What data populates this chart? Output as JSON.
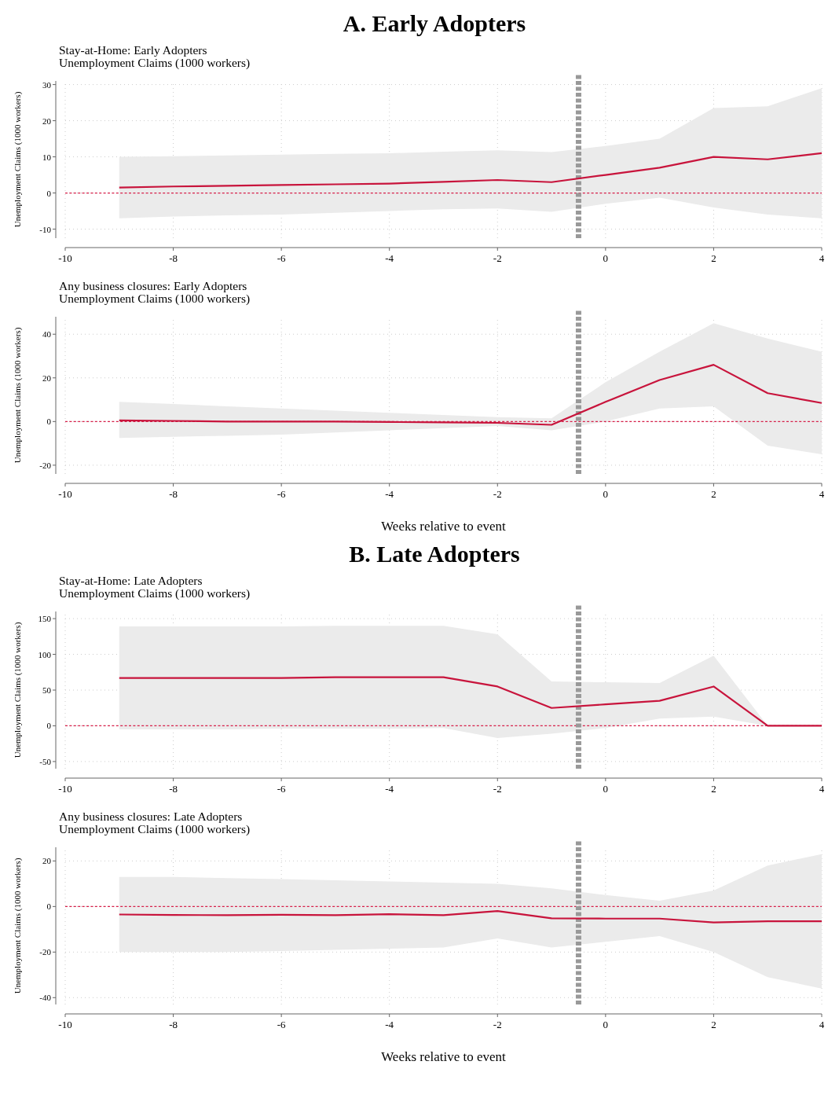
{
  "chart_data": [
    {
      "type": "line",
      "title": "A.  Early Adopters",
      "subtitle": "Stay-at-Home: Early Adopters\nUnemployment Claims (1000 workers)",
      "ylabel": "Unemployment Claims (1000 workers)",
      "x": [
        -9,
        -8,
        -7,
        -6,
        -5,
        -4,
        -3,
        -2,
        -1,
        0,
        1,
        2,
        3,
        4
      ],
      "series": [
        {
          "color": "#c8143c",
          "values": [
            1.5,
            1.8,
            2,
            2.2,
            2.4,
            2.6,
            3.1,
            3.6,
            3,
            5,
            7,
            10,
            9.3,
            11
          ],
          "lower": [
            -7,
            -6.5,
            -6.2,
            -6,
            -5.5,
            -5,
            -4.5,
            -4.3,
            -5.2,
            -3,
            -1.3,
            -4,
            -6,
            -7
          ],
          "upper": [
            10,
            10.2,
            10.4,
            10.6,
            10.8,
            11,
            11.4,
            11.8,
            11.3,
            13,
            15,
            23.5,
            24,
            29
          ]
        }
      ],
      "xlim": [
        -10,
        4
      ],
      "xticks": [
        -10,
        -8,
        -6,
        -4,
        -2,
        0,
        2,
        4
      ],
      "ylim": [
        -12.5,
        31
      ],
      "yticks": [
        -10,
        0,
        10,
        20,
        30
      ],
      "grid": true,
      "marker": "none",
      "ref_lines": [
        {
          "axis": "y",
          "value": 0,
          "color": "#d6204a",
          "line_style": "dashed"
        },
        {
          "axis": "x",
          "value": -0.5,
          "color": "#999999",
          "line_style": "dashed"
        }
      ]
    },
    {
      "type": "line",
      "subtitle": "Any business closures: Early Adopters\nUnemployment Claims (1000 workers)",
      "ylabel": "Unemployment Claims (1000 workers)",
      "xlabel": "Weeks relative to event",
      "x": [
        -9,
        -8,
        -7,
        -6,
        -5,
        -4,
        -3,
        -2,
        -1,
        0,
        1,
        2,
        3,
        4
      ],
      "series": [
        {
          "color": "#c8143c",
          "values": [
            0.5,
            0.3,
            0,
            0,
            0,
            -0.2,
            -0.4,
            -0.6,
            -1.5,
            9,
            19,
            26,
            13,
            8.5
          ],
          "lower": [
            -7.5,
            -7,
            -6.5,
            -6,
            -5,
            -4,
            -3,
            -2,
            -4,
            0,
            6,
            7,
            -11,
            -15
          ],
          "upper": [
            9,
            8,
            7,
            6,
            5,
            4,
            3,
            2,
            1.5,
            18,
            32,
            45,
            38,
            32
          ]
        }
      ],
      "xlim": [
        -10,
        4
      ],
      "xticks": [
        -10,
        -8,
        -6,
        -4,
        -2,
        0,
        2,
        4
      ],
      "ylim": [
        -24,
        48
      ],
      "yticks": [
        -20,
        0,
        20,
        40
      ],
      "grid": true,
      "marker": "none",
      "ref_lines": [
        {
          "axis": "y",
          "value": 0,
          "color": "#d6204a",
          "line_style": "dashed"
        },
        {
          "axis": "x",
          "value": -0.5,
          "color": "#999999",
          "line_style": "dashed"
        }
      ]
    },
    {
      "type": "line",
      "title": "B.  Late Adopters",
      "subtitle": "Stay-at-Home: Late Adopters\nUnemployment Claims (1000 workers)",
      "ylabel": "Unemployment Claims (1000 workers)",
      "x": [
        -9,
        -8,
        -7,
        -6,
        -5,
        -4,
        -3,
        -2,
        -1,
        0,
        1,
        2,
        3,
        4
      ],
      "series": [
        {
          "color": "#c8143c",
          "values": [
            67,
            67,
            67,
            67,
            68,
            68,
            68,
            55,
            25,
            30,
            35,
            55,
            0,
            0
          ],
          "lower": [
            -5,
            -5,
            -5,
            -4,
            -4,
            -4,
            -3,
            -17,
            -11,
            -3,
            10,
            13,
            0,
            0
          ],
          "upper": [
            139,
            139,
            139,
            139,
            140,
            140,
            140,
            128,
            62,
            61,
            60,
            98,
            0,
            0
          ]
        }
      ],
      "xlim": [
        -10,
        4
      ],
      "xticks": [
        -10,
        -8,
        -6,
        -4,
        -2,
        0,
        2,
        4
      ],
      "ylim": [
        -60,
        160
      ],
      "yticks": [
        -50,
        0,
        50,
        100,
        150
      ],
      "grid": true,
      "marker": "none",
      "ref_lines": [
        {
          "axis": "y",
          "value": 0,
          "color": "#d6204a",
          "line_style": "dashed"
        },
        {
          "axis": "x",
          "value": -0.5,
          "color": "#999999",
          "line_style": "dashed"
        }
      ]
    },
    {
      "type": "line",
      "subtitle": "Any business closures: Late Adopters\nUnemployment Claims (1000 workers)",
      "ylabel": "Unemployment Claims (1000 workers)",
      "xlabel": "Weeks relative to event",
      "x": [
        -9,
        -8,
        -7,
        -6,
        -5,
        -4,
        -3,
        -2,
        -1,
        0,
        1,
        2,
        3,
        4
      ],
      "series": [
        {
          "color": "#c8143c",
          "values": [
            -3.5,
            -3.7,
            -3.8,
            -3.6,
            -3.8,
            -3.4,
            -3.8,
            -2,
            -5.2,
            -5.3,
            -5.3,
            -7,
            -6.5,
            -6.5
          ],
          "lower": [
            -20,
            -20,
            -20,
            -19.5,
            -19,
            -18.5,
            -18,
            -14,
            -18,
            -15.5,
            -13,
            -20,
            -31,
            -36
          ],
          "upper": [
            13,
            13,
            12.5,
            12,
            11.5,
            11,
            10.5,
            10,
            8,
            5,
            2.5,
            7,
            18,
            23
          ]
        }
      ],
      "xlim": [
        -10,
        4
      ],
      "xticks": [
        -10,
        -8,
        -6,
        -4,
        -2,
        0,
        2,
        4
      ],
      "ylim": [
        -43,
        26
      ],
      "yticks": [
        -40,
        -20,
        0,
        20
      ],
      "grid": true,
      "marker": "none",
      "ref_lines": [
        {
          "axis": "y",
          "value": 0,
          "color": "#d6204a",
          "line_style": "dashed"
        },
        {
          "axis": "x",
          "value": -0.5,
          "color": "#999999",
          "line_style": "dashed"
        }
      ]
    }
  ]
}
